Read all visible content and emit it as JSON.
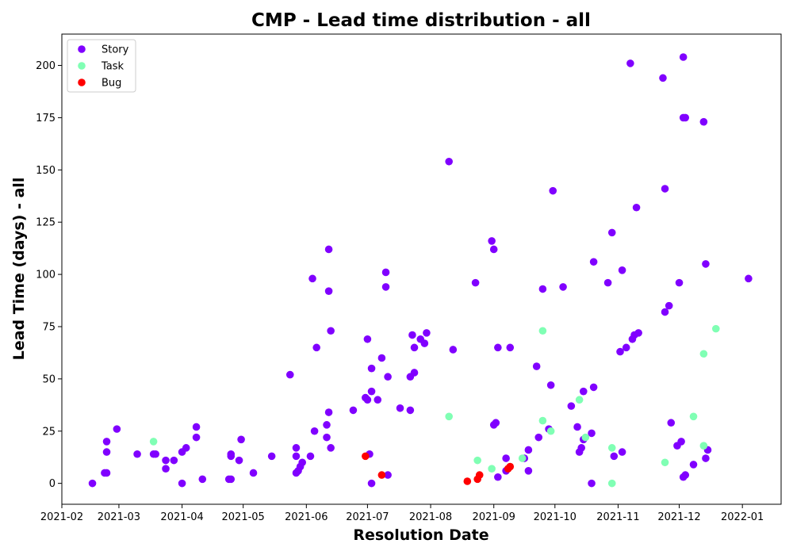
{
  "chart_data": {
    "type": "scatter",
    "title": "CMP - Lead time distribution - all",
    "xlabel": "Resolution Date",
    "ylabel": "Lead Time (days) - all",
    "xlim": [
      "2021-02-01",
      "2022-01-20"
    ],
    "ylim": [
      -10,
      215
    ],
    "x_ticks": [
      {
        "date": "2021-02-01",
        "label": "2021-02"
      },
      {
        "date": "2021-03-01",
        "label": "2021-03"
      },
      {
        "date": "2021-04-01",
        "label": "2021-04"
      },
      {
        "date": "2021-05-01",
        "label": "2021-05"
      },
      {
        "date": "2021-06-01",
        "label": "2021-06"
      },
      {
        "date": "2021-07-01",
        "label": "2021-07"
      },
      {
        "date": "2021-08-01",
        "label": "2021-08"
      },
      {
        "date": "2021-09-01",
        "label": "2021-09"
      },
      {
        "date": "2021-10-01",
        "label": "2021-10"
      },
      {
        "date": "2021-11-01",
        "label": "2021-11"
      },
      {
        "date": "2021-12-01",
        "label": "2021-12"
      },
      {
        "date": "2022-01-01",
        "label": "2022-01"
      }
    ],
    "y_ticks": [
      0,
      25,
      50,
      75,
      100,
      125,
      150,
      175,
      200
    ],
    "legend_position": "top-left",
    "series": [
      {
        "name": "Story",
        "color": "#8000ff",
        "points": [
          [
            "2021-02-16",
            0
          ],
          [
            "2021-02-22",
            5
          ],
          [
            "2021-02-23",
            5
          ],
          [
            "2021-02-23",
            15
          ],
          [
            "2021-02-23",
            20
          ],
          [
            "2021-02-28",
            26
          ],
          [
            "2021-03-10",
            14
          ],
          [
            "2021-03-18",
            14
          ],
          [
            "2021-03-19",
            14
          ],
          [
            "2021-03-24",
            11
          ],
          [
            "2021-03-24",
            7
          ],
          [
            "2021-03-28",
            11
          ],
          [
            "2021-04-01",
            15
          ],
          [
            "2021-04-01",
            0
          ],
          [
            "2021-04-03",
            17
          ],
          [
            "2021-04-08",
            27
          ],
          [
            "2021-04-08",
            22
          ],
          [
            "2021-04-11",
            2
          ],
          [
            "2021-04-24",
            2
          ],
          [
            "2021-04-25",
            2
          ],
          [
            "2021-04-25",
            14
          ],
          [
            "2021-04-25",
            13
          ],
          [
            "2021-04-29",
            11
          ],
          [
            "2021-04-30",
            21
          ],
          [
            "2021-05-06",
            5
          ],
          [
            "2021-05-15",
            13
          ],
          [
            "2021-05-24",
            52
          ],
          [
            "2021-05-27",
            17
          ],
          [
            "2021-05-27",
            13
          ],
          [
            "2021-05-27",
            5
          ],
          [
            "2021-05-28",
            6
          ],
          [
            "2021-05-29",
            8
          ],
          [
            "2021-05-30",
            10
          ],
          [
            "2021-06-03",
            13
          ],
          [
            "2021-06-04",
            98
          ],
          [
            "2021-06-05",
            25
          ],
          [
            "2021-06-06",
            65
          ],
          [
            "2021-06-11",
            22
          ],
          [
            "2021-06-11",
            28
          ],
          [
            "2021-06-12",
            112
          ],
          [
            "2021-06-12",
            92
          ],
          [
            "2021-06-12",
            34
          ],
          [
            "2021-06-13",
            73
          ],
          [
            "2021-06-13",
            17
          ],
          [
            "2021-06-24",
            35
          ],
          [
            "2021-06-30",
            41
          ],
          [
            "2021-07-01",
            40
          ],
          [
            "2021-07-01",
            69
          ],
          [
            "2021-07-02",
            14
          ],
          [
            "2021-07-03",
            44
          ],
          [
            "2021-07-03",
            55
          ],
          [
            "2021-07-03",
            0
          ],
          [
            "2021-07-06",
            40
          ],
          [
            "2021-07-08",
            60
          ],
          [
            "2021-07-10",
            101
          ],
          [
            "2021-07-10",
            94
          ],
          [
            "2021-07-11",
            51
          ],
          [
            "2021-07-11",
            4
          ],
          [
            "2021-07-17",
            36
          ],
          [
            "2021-07-22",
            35
          ],
          [
            "2021-07-22",
            51
          ],
          [
            "2021-07-23",
            71
          ],
          [
            "2021-07-24",
            53
          ],
          [
            "2021-07-24",
            65
          ],
          [
            "2021-07-27",
            69
          ],
          [
            "2021-07-29",
            67
          ],
          [
            "2021-07-30",
            72
          ],
          [
            "2021-08-10",
            154
          ],
          [
            "2021-08-12",
            64
          ],
          [
            "2021-08-23",
            96
          ],
          [
            "2021-08-31",
            116
          ],
          [
            "2021-09-01",
            112
          ],
          [
            "2021-09-01",
            28
          ],
          [
            "2021-09-02",
            29
          ],
          [
            "2021-09-03",
            65
          ],
          [
            "2021-09-03",
            3
          ],
          [
            "2021-09-07",
            12
          ],
          [
            "2021-09-07",
            6
          ],
          [
            "2021-09-09",
            65
          ],
          [
            "2021-09-16",
            12
          ],
          [
            "2021-09-18",
            16
          ],
          [
            "2021-09-18",
            6
          ],
          [
            "2021-09-22",
            56
          ],
          [
            "2021-09-23",
            22
          ],
          [
            "2021-09-25",
            93
          ],
          [
            "2021-09-28",
            26
          ],
          [
            "2021-09-29",
            47
          ],
          [
            "2021-09-30",
            140
          ],
          [
            "2021-10-05",
            94
          ],
          [
            "2021-10-09",
            37
          ],
          [
            "2021-10-12",
            27
          ],
          [
            "2021-10-13",
            15
          ],
          [
            "2021-10-14",
            17
          ],
          [
            "2021-10-15",
            21
          ],
          [
            "2021-10-15",
            44
          ],
          [
            "2021-10-19",
            24
          ],
          [
            "2021-10-19",
            0
          ],
          [
            "2021-10-20",
            106
          ],
          [
            "2021-10-20",
            46
          ],
          [
            "2021-10-27",
            96
          ],
          [
            "2021-10-29",
            120
          ],
          [
            "2021-10-30",
            13
          ],
          [
            "2021-11-02",
            63
          ],
          [
            "2021-11-03",
            102
          ],
          [
            "2021-11-03",
            15
          ],
          [
            "2021-11-05",
            65
          ],
          [
            "2021-11-07",
            201
          ],
          [
            "2021-11-08",
            69
          ],
          [
            "2021-11-09",
            71
          ],
          [
            "2021-11-10",
            132
          ],
          [
            "2021-11-11",
            72
          ],
          [
            "2021-11-23",
            194
          ],
          [
            "2021-11-24",
            141
          ],
          [
            "2021-11-24",
            82
          ],
          [
            "2021-11-26",
            85
          ],
          [
            "2021-11-27",
            29
          ],
          [
            "2021-11-30",
            18
          ],
          [
            "2021-12-01",
            96
          ],
          [
            "2021-12-02",
            20
          ],
          [
            "2021-12-03",
            204
          ],
          [
            "2021-12-03",
            175
          ],
          [
            "2021-12-04",
            175
          ],
          [
            "2021-12-03",
            3
          ],
          [
            "2021-12-04",
            4
          ],
          [
            "2021-12-08",
            9
          ],
          [
            "2021-12-13",
            173
          ],
          [
            "2021-12-14",
            105
          ],
          [
            "2021-12-14",
            12
          ],
          [
            "2021-12-15",
            16
          ],
          [
            "2022-01-04",
            98
          ]
        ]
      },
      {
        "name": "Task",
        "color": "#80ffb4",
        "points": [
          [
            "2021-03-18",
            20
          ],
          [
            "2021-08-10",
            32
          ],
          [
            "2021-08-24",
            11
          ],
          [
            "2021-08-31",
            7
          ],
          [
            "2021-09-15",
            12
          ],
          [
            "2021-09-25",
            73
          ],
          [
            "2021-09-25",
            30
          ],
          [
            "2021-09-29",
            25
          ],
          [
            "2021-10-13",
            40
          ],
          [
            "2021-10-16",
            22
          ],
          [
            "2021-10-29",
            17
          ],
          [
            "2021-10-29",
            0
          ],
          [
            "2021-11-24",
            10
          ],
          [
            "2021-12-08",
            32
          ],
          [
            "2021-12-13",
            62
          ],
          [
            "2021-12-13",
            18
          ],
          [
            "2021-12-19",
            74
          ]
        ]
      },
      {
        "name": "Bug",
        "color": "#ff0000",
        "points": [
          [
            "2021-06-30",
            13
          ],
          [
            "2021-07-08",
            4
          ],
          [
            "2021-08-19",
            1
          ],
          [
            "2021-08-24",
            2
          ],
          [
            "2021-08-25",
            4
          ],
          [
            "2021-09-09",
            8
          ],
          [
            "2021-09-08",
            7
          ]
        ]
      }
    ]
  }
}
